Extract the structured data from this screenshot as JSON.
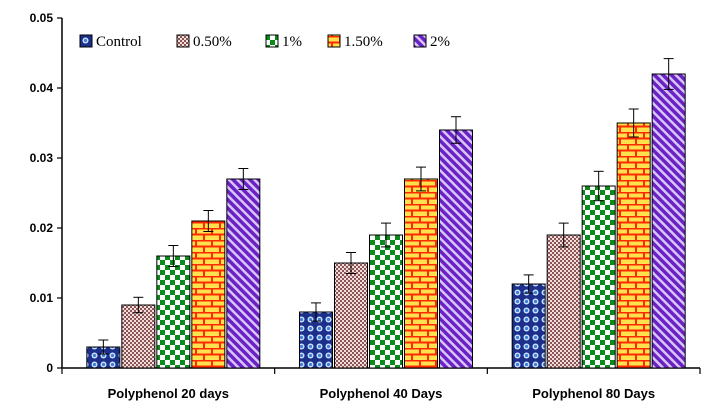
{
  "chart_data": {
    "type": "bar",
    "title": "",
    "xlabel": "",
    "ylabel": "",
    "ylim": [
      0,
      0.05
    ],
    "yticks": [
      "0",
      "0.01",
      "0.02",
      "0.03",
      "0.04",
      "0.05"
    ],
    "ytick_values": [
      0,
      0.01,
      0.02,
      0.03,
      0.04,
      0.05
    ],
    "grid": false,
    "legend_position": "top-left",
    "categories": [
      "Polyphenol 20 days",
      "Polyphenol 40 Days",
      "Polyphenol 80 Days"
    ],
    "series": [
      {
        "name": "Control",
        "values": [
          0.003,
          0.008,
          0.012
        ],
        "errors": [
          0.001,
          0.0013,
          0.0013
        ],
        "color": "#1c2f8a",
        "pattern": "dots"
      },
      {
        "name": "0.50%",
        "values": [
          0.009,
          0.015,
          0.019
        ],
        "errors": [
          0.0011,
          0.0015,
          0.0017
        ],
        "color": "#9b6f6f",
        "pattern": "checker-fine"
      },
      {
        "name": "1%",
        "values": [
          0.016,
          0.019,
          0.026
        ],
        "errors": [
          0.0015,
          0.0017,
          0.0021
        ],
        "color": "#0a8a1a",
        "pattern": "checker"
      },
      {
        "name": "1.50%",
        "values": [
          0.021,
          0.027,
          0.035
        ],
        "errors": [
          0.0015,
          0.0017,
          0.002
        ],
        "color": "#ff2a00",
        "pattern": "brick"
      },
      {
        "name": "2%",
        "values": [
          0.027,
          0.034,
          0.042
        ],
        "errors": [
          0.0015,
          0.0019,
          0.0022
        ],
        "color": "#7b2fc9",
        "pattern": "diagonal"
      }
    ]
  }
}
